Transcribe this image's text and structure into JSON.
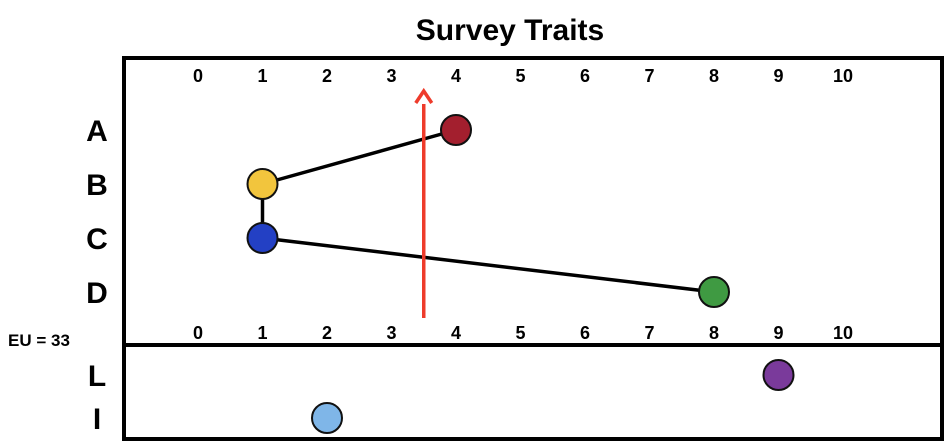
{
  "chart_data": {
    "type": "scatter",
    "title": "Survey Traits",
    "x_ticks": [
      "0",
      "1",
      "2",
      "3",
      "4",
      "5",
      "6",
      "7",
      "8",
      "9",
      "10"
    ],
    "xlim": [
      0,
      10
    ],
    "grid": false,
    "legend": "none",
    "panels": [
      {
        "name": "",
        "rows": [
          "A",
          "B",
          "C",
          "D"
        ],
        "points": [
          {
            "row": "A",
            "x": 4,
            "color": "#a31f2e"
          },
          {
            "row": "B",
            "x": 1,
            "color": "#f2c53d"
          },
          {
            "row": "C",
            "x": 1,
            "color": "#2340c4"
          },
          {
            "row": "D",
            "x": 8,
            "color": "#3f9a42"
          }
        ],
        "connections": [
          {
            "from": "A",
            "to": "B"
          },
          {
            "from": "B",
            "to": "C"
          },
          {
            "from": "C",
            "to": "D"
          }
        ],
        "marker": {
          "x": 3.5,
          "direction": "up",
          "color": "#ee3b2b"
        }
      },
      {
        "name": "",
        "rows": [
          "L",
          "I"
        ],
        "points": [
          {
            "row": "L",
            "x": 9,
            "color": "#7a3a9b"
          },
          {
            "row": "I",
            "x": 2,
            "color": "#7fb6e8"
          }
        ]
      }
    ],
    "annotations": [
      "EU = 33"
    ]
  }
}
